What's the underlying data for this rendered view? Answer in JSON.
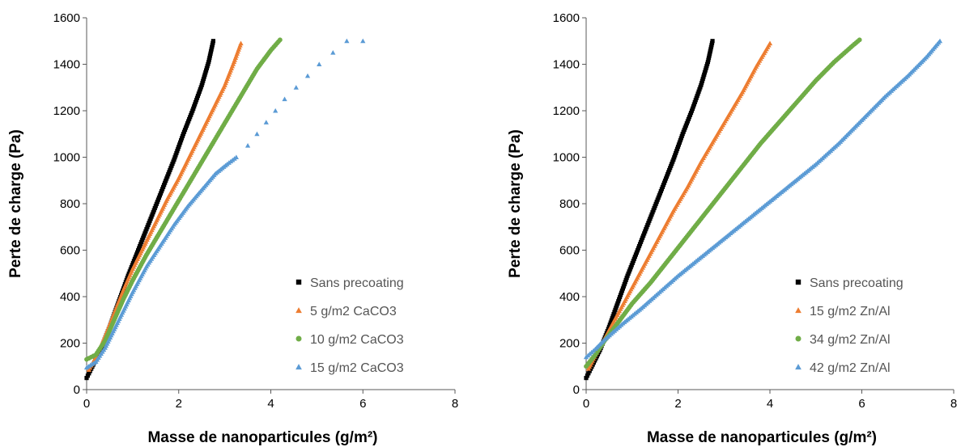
{
  "colors": {
    "black": "#000000",
    "orange": "#ED7D31",
    "green": "#70AD47",
    "blue": "#5B9BD5"
  },
  "chart_data": [
    {
      "type": "scatter",
      "xlabel": "Masse de nanoparticules (g/m²)",
      "ylabel": "Perte de charge (Pa)",
      "xlim": [
        0,
        8
      ],
      "ylim": [
        0,
        1600
      ],
      "xticks": [
        0,
        2,
        4,
        6,
        8
      ],
      "yticks": [
        0,
        200,
        400,
        600,
        800,
        1000,
        1200,
        1400,
        1600
      ],
      "grid": false,
      "legend_position": "bottom-right",
      "series": [
        {
          "name": "Sans precoating",
          "marker": "square",
          "color": "#000000",
          "points": [
            [
              0,
              50
            ],
            [
              0.1,
              90
            ],
            [
              0.3,
              170
            ],
            [
              0.5,
              270
            ],
            [
              0.7,
              380
            ],
            [
              0.9,
              490
            ],
            [
              1.1,
              590
            ],
            [
              1.3,
              690
            ],
            [
              1.5,
              790
            ],
            [
              1.7,
              890
            ],
            [
              1.9,
              990
            ],
            [
              2.1,
              1100
            ],
            [
              2.3,
              1200
            ],
            [
              2.5,
              1310
            ],
            [
              2.65,
              1410
            ],
            [
              2.75,
              1500
            ]
          ]
        },
        {
          "name": "5 g/m2 CaCO3",
          "marker": "triangle",
          "color": "#ED7D31",
          "points": [
            [
              0.05,
              85
            ],
            [
              0.2,
              140
            ],
            [
              0.4,
              230
            ],
            [
              0.6,
              330
            ],
            [
              0.8,
              430
            ],
            [
              1.0,
              520
            ],
            [
              1.25,
              620
            ],
            [
              1.5,
              720
            ],
            [
              1.75,
              820
            ],
            [
              2.0,
              910
            ],
            [
              2.25,
              1010
            ],
            [
              2.5,
              1110
            ],
            [
              2.75,
              1210
            ],
            [
              3.0,
              1310
            ],
            [
              3.2,
              1410
            ],
            [
              3.35,
              1490
            ]
          ]
        },
        {
          "name": "10 g/m2 CaCO3",
          "marker": "circle",
          "color": "#70AD47",
          "points": [
            [
              0,
              130
            ],
            [
              0.2,
              150
            ],
            [
              0.4,
              210
            ],
            [
              0.6,
              300
            ],
            [
              0.8,
              390
            ],
            [
              1.0,
              470
            ],
            [
              1.3,
              580
            ],
            [
              1.6,
              680
            ],
            [
              1.9,
              780
            ],
            [
              2.2,
              880
            ],
            [
              2.5,
              980
            ],
            [
              2.8,
              1080
            ],
            [
              3.1,
              1180
            ],
            [
              3.4,
              1280
            ],
            [
              3.7,
              1380
            ],
            [
              4.0,
              1460
            ],
            [
              4.2,
              1505
            ]
          ]
        },
        {
          "name": "15 g/m2 CaCO3",
          "marker": "triangle",
          "color": "#5B9BD5",
          "points": [
            [
              0,
              95
            ],
            [
              0.2,
              120
            ],
            [
              0.4,
              180
            ],
            [
              0.6,
              260
            ],
            [
              0.8,
              340
            ],
            [
              1.0,
              420
            ],
            [
              1.3,
              530
            ],
            [
              1.6,
              620
            ],
            [
              1.9,
              710
            ],
            [
              2.2,
              790
            ],
            [
              2.5,
              860
            ],
            [
              2.8,
              930
            ],
            [
              3.05,
              970
            ],
            [
              3.25,
              1000
            ],
            [
              3.5,
              1050
            ],
            [
              3.7,
              1100
            ],
            [
              3.9,
              1150
            ],
            [
              4.1,
              1200
            ],
            [
              4.3,
              1250
            ],
            [
              4.55,
              1300
            ],
            [
              4.8,
              1350
            ],
            [
              5.05,
              1400
            ],
            [
              5.35,
              1450
            ],
            [
              5.65,
              1500
            ],
            [
              6.0,
              1500
            ]
          ]
        }
      ]
    },
    {
      "type": "scatter",
      "xlabel": "Masse de nanoparticules (g/m²)",
      "ylabel": "Perte de charge (Pa)",
      "xlim": [
        0,
        8
      ],
      "ylim": [
        0,
        1600
      ],
      "xticks": [
        0,
        2,
        4,
        6,
        8
      ],
      "yticks": [
        0,
        200,
        400,
        600,
        800,
        1000,
        1200,
        1400,
        1600
      ],
      "grid": false,
      "legend_position": "bottom-right",
      "series": [
        {
          "name": "Sans precoating",
          "marker": "square",
          "color": "#000000",
          "points": [
            [
              0,
              50
            ],
            [
              0.1,
              90
            ],
            [
              0.3,
              170
            ],
            [
              0.5,
              270
            ],
            [
              0.7,
              380
            ],
            [
              0.9,
              490
            ],
            [
              1.1,
              590
            ],
            [
              1.3,
              690
            ],
            [
              1.5,
              790
            ],
            [
              1.7,
              890
            ],
            [
              1.9,
              990
            ],
            [
              2.1,
              1100
            ],
            [
              2.3,
              1200
            ],
            [
              2.5,
              1310
            ],
            [
              2.65,
              1410
            ],
            [
              2.75,
              1500
            ]
          ]
        },
        {
          "name": "15 g/m2 Zn/Al",
          "marker": "triangle",
          "color": "#ED7D31",
          "points": [
            [
              0.05,
              90
            ],
            [
              0.2,
              150
            ],
            [
              0.4,
              220
            ],
            [
              0.7,
              330
            ],
            [
              1.0,
              440
            ],
            [
              1.3,
              550
            ],
            [
              1.6,
              660
            ],
            [
              1.9,
              770
            ],
            [
              2.2,
              870
            ],
            [
              2.5,
              980
            ],
            [
              2.8,
              1080
            ],
            [
              3.1,
              1180
            ],
            [
              3.4,
              1280
            ],
            [
              3.7,
              1390
            ],
            [
              4.0,
              1490
            ]
          ]
        },
        {
          "name": "34 g/m2 Zn/Al",
          "marker": "circle",
          "color": "#70AD47",
          "points": [
            [
              0,
              100
            ],
            [
              0.2,
              150
            ],
            [
              0.4,
              210
            ],
            [
              0.7,
              290
            ],
            [
              1.0,
              370
            ],
            [
              1.4,
              460
            ],
            [
              1.8,
              560
            ],
            [
              2.2,
              660
            ],
            [
              2.6,
              760
            ],
            [
              3.0,
              860
            ],
            [
              3.4,
              960
            ],
            [
              3.8,
              1060
            ],
            [
              4.2,
              1150
            ],
            [
              4.6,
              1240
            ],
            [
              5.0,
              1330
            ],
            [
              5.4,
              1410
            ],
            [
              5.8,
              1480
            ],
            [
              5.95,
              1505
            ]
          ]
        },
        {
          "name": "42 g/m2 Zn/Al",
          "marker": "triangle",
          "color": "#5B9BD5",
          "points": [
            [
              0,
              140
            ],
            [
              0.2,
              175
            ],
            [
              0.4,
              215
            ],
            [
              0.8,
              285
            ],
            [
              1.2,
              350
            ],
            [
              1.6,
              420
            ],
            [
              2.0,
              490
            ],
            [
              2.5,
              570
            ],
            [
              3.0,
              650
            ],
            [
              3.5,
              730
            ],
            [
              4.0,
              810
            ],
            [
              4.5,
              890
            ],
            [
              5.0,
              970
            ],
            [
              5.5,
              1060
            ],
            [
              6.0,
              1160
            ],
            [
              6.5,
              1260
            ],
            [
              7.0,
              1350
            ],
            [
              7.4,
              1430
            ],
            [
              7.7,
              1500
            ]
          ]
        }
      ]
    }
  ]
}
